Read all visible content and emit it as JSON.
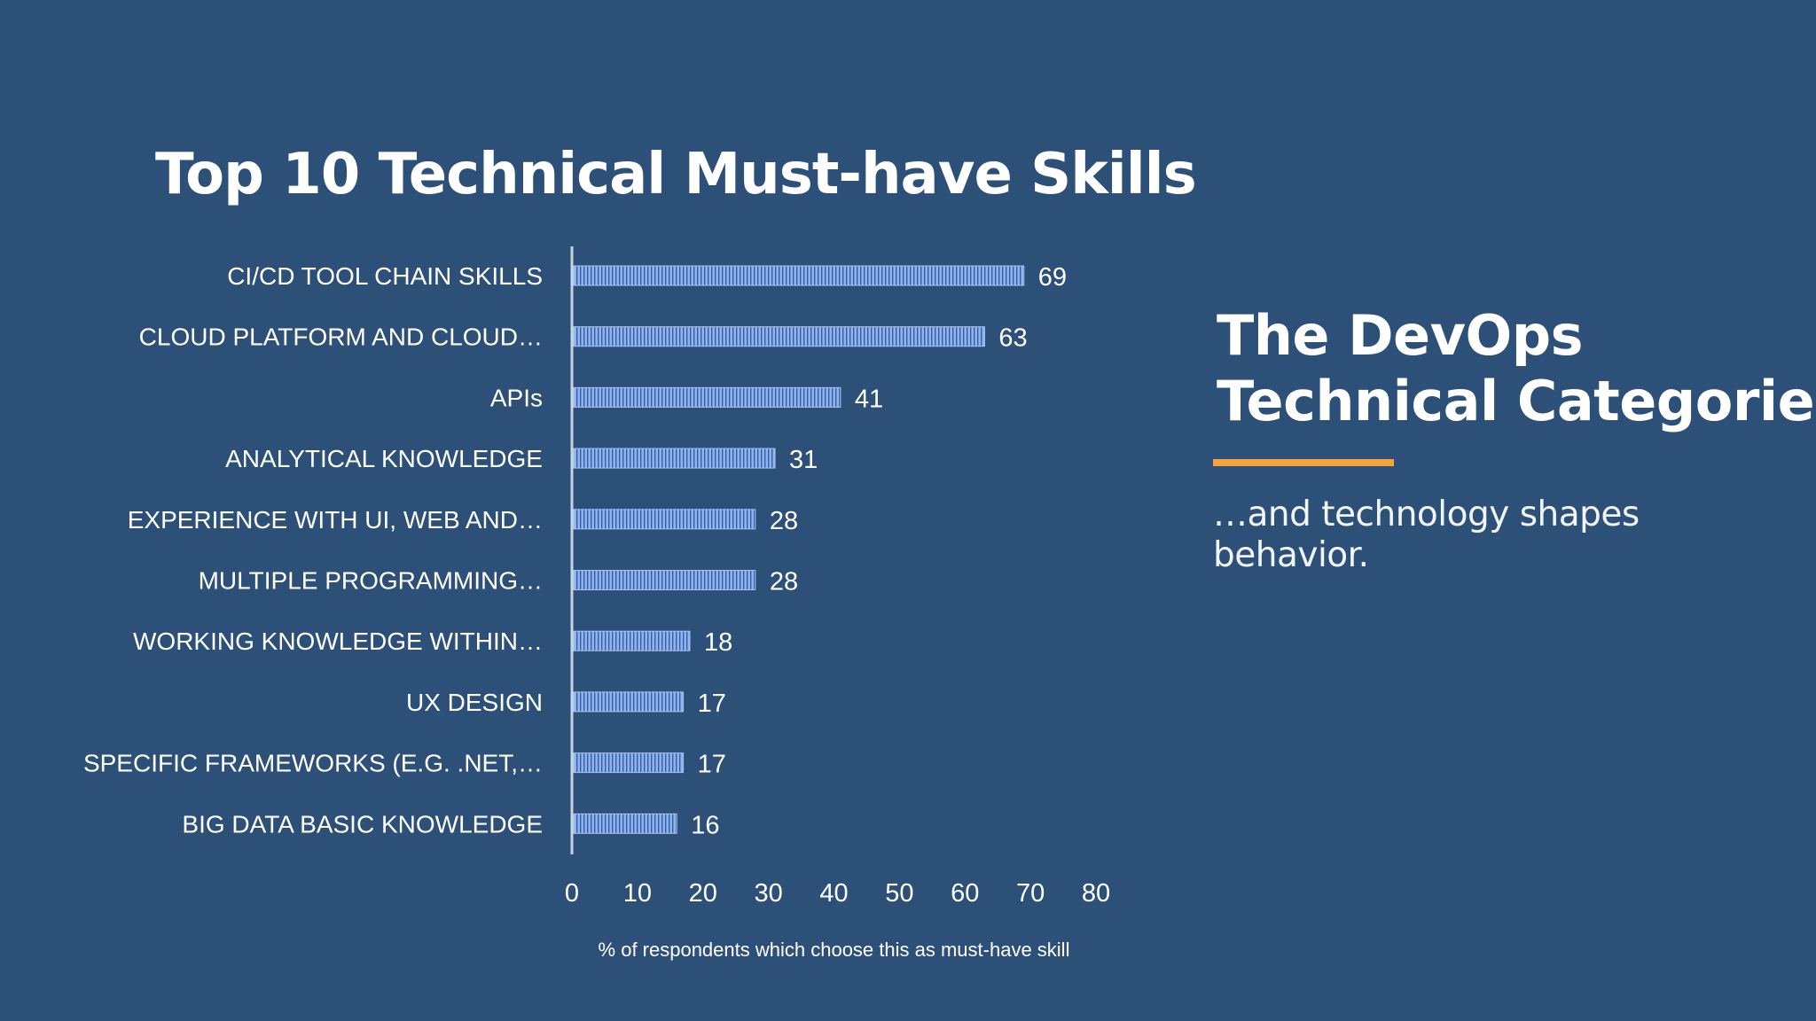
{
  "chart_data": {
    "type": "bar",
    "orientation": "horizontal",
    "title": "Top 10 Technical Must-have Skills",
    "categories": [
      "CI/CD TOOL CHAIN SKILLS",
      "CLOUD PLATFORM AND CLOUD…",
      "APIs",
      "ANALYTICAL KNOWLEDGE",
      "EXPERIENCE WITH UI, WEB AND…",
      "MULTIPLE PROGRAMMING…",
      "WORKING KNOWLEDGE WITHIN…",
      "UX DESIGN",
      "SPECIFIC FRAMEWORKS (E.G. .NET,…",
      "BIG DATA BASIC KNOWLEDGE"
    ],
    "values": [
      69,
      63,
      41,
      31,
      28,
      28,
      18,
      17,
      17,
      16
    ],
    "xlabel": "% of respondents which choose this as must-have skill",
    "ylabel": "",
    "xlim": [
      0,
      80
    ],
    "xticks": [
      0,
      10,
      20,
      30,
      40,
      50,
      60,
      70,
      80
    ],
    "grid": false,
    "data_labels": true,
    "bar_color": "#8fb3f0",
    "bar_stripe_color": "#3a5fa0"
  },
  "side_panel": {
    "title_line1": "The DevOps",
    "title_line2": "Technical Categories",
    "subtitle": "…and technology shapes behavior.",
    "accent_color": "#f5a23c"
  },
  "theme": {
    "background": "#2c5078",
    "text": "#ffffff"
  }
}
